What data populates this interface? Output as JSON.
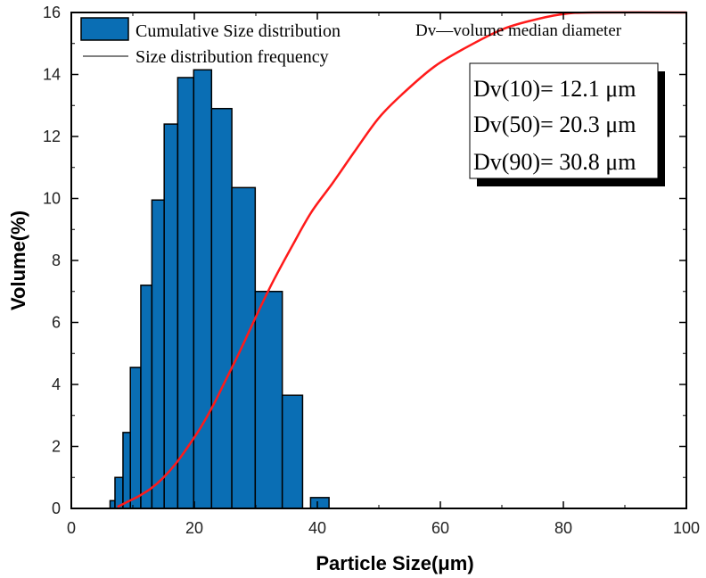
{
  "chart_data": {
    "type": "bar",
    "xlabel": "Particle Size(μm)",
    "ylabel": "Volume(%)",
    "xlim": [
      0,
      100
    ],
    "ylim": [
      0,
      16
    ],
    "xticks": [
      0,
      20,
      40,
      60,
      80,
      100
    ],
    "yticks": [
      0,
      2,
      4,
      6,
      8,
      10,
      12,
      14,
      16
    ],
    "bar_series": {
      "name": "Cumulative Size distribution",
      "color": "#0a6eb4",
      "bars": [
        {
          "x0": 6.3,
          "x1": 7.1,
          "value": 0.25
        },
        {
          "x0": 7.1,
          "x1": 8.4,
          "value": 1.0
        },
        {
          "x0": 8.4,
          "x1": 9.6,
          "value": 2.45
        },
        {
          "x0": 9.6,
          "x1": 11.3,
          "value": 4.55
        },
        {
          "x0": 11.3,
          "x1": 13.1,
          "value": 7.2
        },
        {
          "x0": 13.1,
          "x1": 15.1,
          "value": 9.95
        },
        {
          "x0": 15.1,
          "x1": 17.3,
          "value": 12.4
        },
        {
          "x0": 17.3,
          "x1": 19.9,
          "value": 13.9
        },
        {
          "x0": 19.9,
          "x1": 22.8,
          "value": 14.15
        },
        {
          "x0": 22.8,
          "x1": 26.1,
          "value": 12.9
        },
        {
          "x0": 26.1,
          "x1": 29.9,
          "value": 10.35
        },
        {
          "x0": 29.9,
          "x1": 34.3,
          "value": 7.0
        },
        {
          "x0": 34.3,
          "x1": 37.6,
          "value": 3.65
        },
        {
          "x0": 38.9,
          "x1": 41.9,
          "value": 0.35
        }
      ]
    },
    "line_series": {
      "name": "Size distribution frequency",
      "legend_color": "#000000",
      "color": "#ff1a1a",
      "points": [
        [
          7.5,
          0.05
        ],
        [
          9,
          0.2
        ],
        [
          11,
          0.4
        ],
        [
          13,
          0.65
        ],
        [
          15,
          1.0
        ],
        [
          17,
          1.45
        ],
        [
          19,
          2.0
        ],
        [
          21,
          2.6
        ],
        [
          23,
          3.3
        ],
        [
          25,
          4.1
        ],
        [
          27,
          4.9
        ],
        [
          29,
          5.75
        ],
        [
          31,
          6.6
        ],
        [
          33,
          7.4
        ],
        [
          36,
          8.5
        ],
        [
          39,
          9.55
        ],
        [
          42.5,
          10.5
        ],
        [
          46,
          11.5
        ],
        [
          50,
          12.6
        ],
        [
          54,
          13.4
        ],
        [
          59,
          14.25
        ],
        [
          64,
          14.85
        ],
        [
          70,
          15.45
        ],
        [
          75,
          15.75
        ],
        [
          80,
          15.95
        ],
        [
          85,
          16.0
        ],
        [
          100,
          16.0
        ]
      ]
    },
    "annotation_header": "Dv—volume median diameter",
    "annotations": [
      "Dv(10)= 12.1 μm",
      "Dv(50)= 20.3 μm",
      "Dv(90)= 30.8 μm"
    ]
  }
}
